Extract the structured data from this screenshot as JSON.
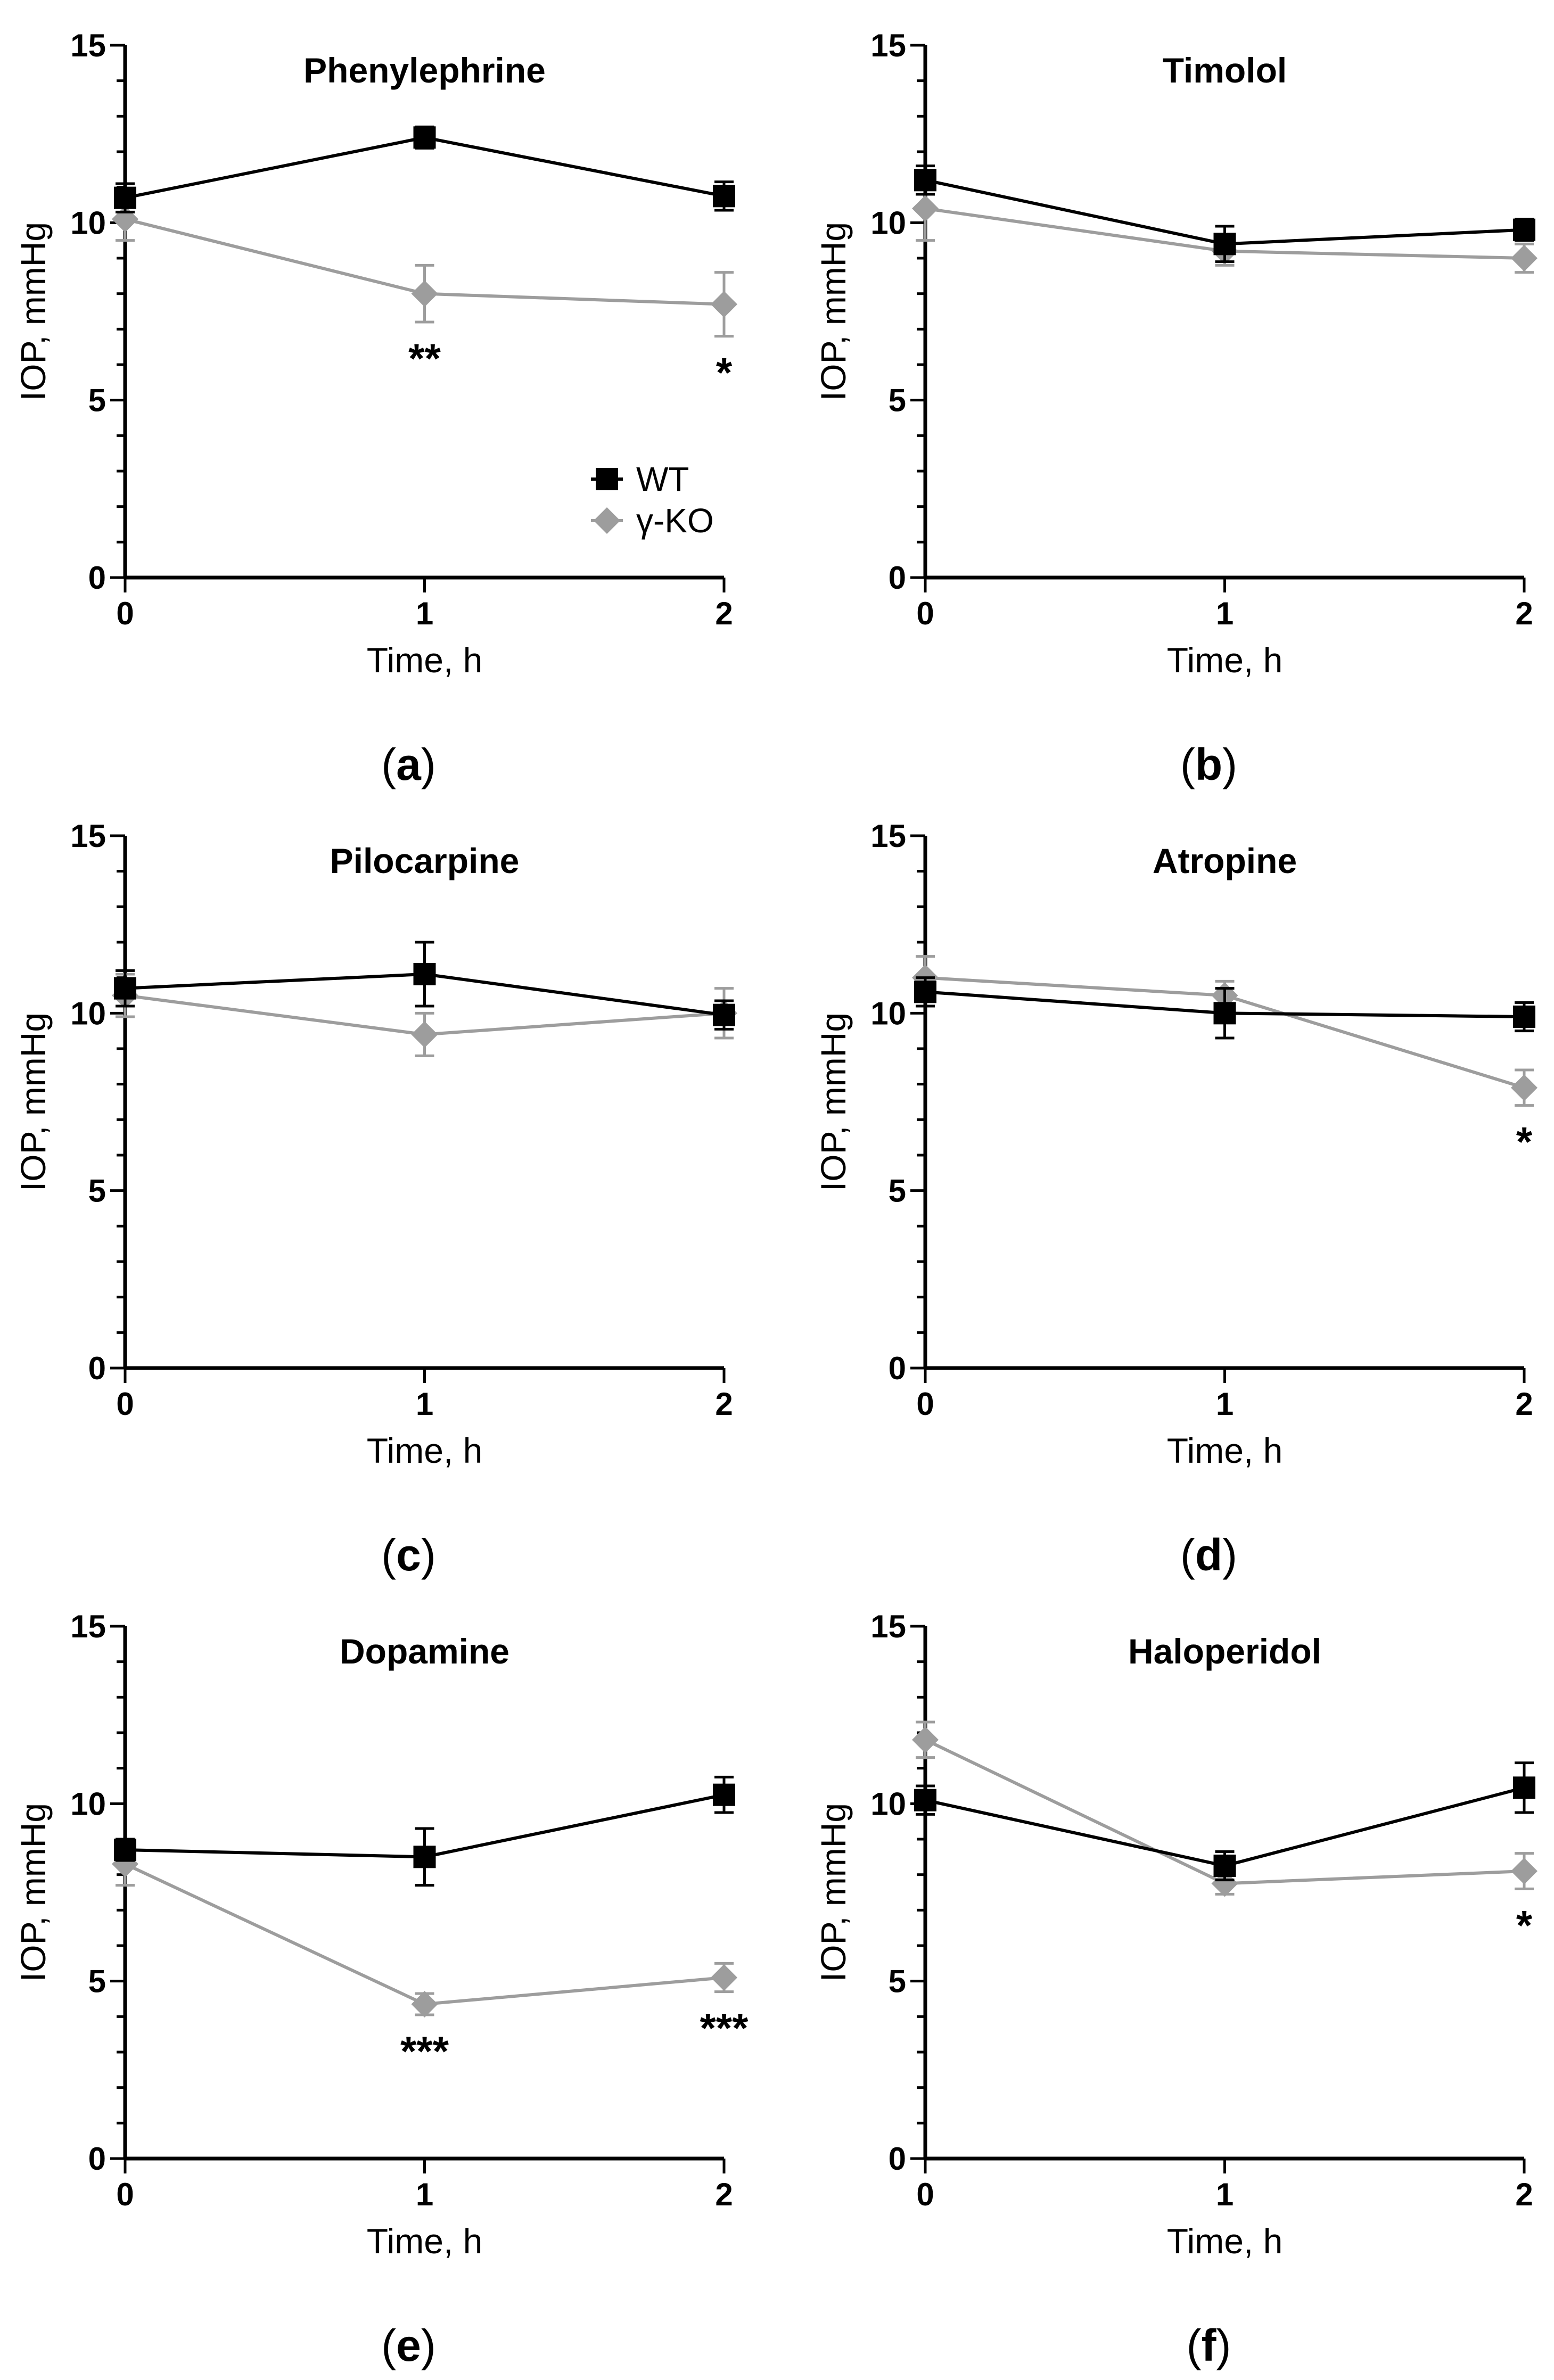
{
  "colors": {
    "WT": "#000000",
    "gamma_KO": "#9d9d9d",
    "axis": "#000000",
    "background": "#ffffff"
  },
  "legend": {
    "panel": "a",
    "placement": "lower-right",
    "entries": [
      {
        "series": "WT",
        "label": "WT",
        "marker": "square"
      },
      {
        "series": "gamma_KO",
        "label": "γ-KO",
        "marker": "diamond"
      }
    ]
  },
  "chart_data": [
    {
      "id": "a",
      "letter": "a",
      "type": "line",
      "title": "Phenylephrine",
      "xlabel": "Time, h",
      "ylabel": "IOP, mmHg",
      "x": [
        0,
        1,
        2
      ],
      "xlim": [
        0,
        2
      ],
      "ylim": [
        0,
        15
      ],
      "xticks": [
        "0",
        "1",
        "2"
      ],
      "yticks": [
        "0",
        "5",
        "10",
        "15"
      ],
      "series": [
        {
          "key": "WT",
          "values": [
            10.7,
            12.4,
            10.75
          ],
          "errors": [
            0.4,
            0.3,
            0.4
          ]
        },
        {
          "key": "gamma_KO",
          "values": [
            10.1,
            8.0,
            7.7
          ],
          "errors": [
            0.6,
            0.8,
            0.9
          ]
        }
      ],
      "annotations": [
        {
          "x": 1,
          "text": "**"
        },
        {
          "x": 2,
          "text": "*"
        }
      ]
    },
    {
      "id": "b",
      "letter": "b",
      "type": "line",
      "title": "Timolol",
      "xlabel": "Time, h",
      "ylabel": "IOP, mmHg",
      "x": [
        0,
        1,
        2
      ],
      "xlim": [
        0,
        2
      ],
      "ylim": [
        0,
        15
      ],
      "xticks": [
        "0",
        "1",
        "2"
      ],
      "yticks": [
        "0",
        "5",
        "10",
        "15"
      ],
      "series": [
        {
          "key": "WT",
          "values": [
            11.2,
            9.4,
            9.8
          ],
          "errors": [
            0.4,
            0.5,
            0.3
          ]
        },
        {
          "key": "gamma_KO",
          "values": [
            10.4,
            9.2,
            9.0
          ],
          "errors": [
            0.9,
            0.4,
            0.4
          ]
        }
      ],
      "annotations": []
    },
    {
      "id": "c",
      "letter": "c",
      "type": "line",
      "title": "Pilocarpine",
      "xlabel": "Time, h",
      "ylabel": "IOP, mmHg",
      "x": [
        0,
        1,
        2
      ],
      "xlim": [
        0,
        2
      ],
      "ylim": [
        0,
        15
      ],
      "xticks": [
        "0",
        "1",
        "2"
      ],
      "yticks": [
        "0",
        "5",
        "10",
        "15"
      ],
      "series": [
        {
          "key": "WT",
          "values": [
            10.7,
            11.1,
            9.95
          ],
          "errors": [
            0.5,
            0.9,
            0.4
          ]
        },
        {
          "key": "gamma_KO",
          "values": [
            10.5,
            9.4,
            10.0
          ],
          "errors": [
            0.6,
            0.6,
            0.7
          ]
        }
      ],
      "annotations": []
    },
    {
      "id": "d",
      "letter": "d",
      "type": "line",
      "title": "Atropine",
      "xlabel": "Time, h",
      "ylabel": "IOP, mmHg",
      "x": [
        0,
        1,
        2
      ],
      "xlim": [
        0,
        2
      ],
      "ylim": [
        0,
        15
      ],
      "xticks": [
        "0",
        "1",
        "2"
      ],
      "yticks": [
        "0",
        "5",
        "10",
        "15"
      ],
      "series": [
        {
          "key": "WT",
          "values": [
            10.6,
            10.0,
            9.9
          ],
          "errors": [
            0.4,
            0.7,
            0.4
          ]
        },
        {
          "key": "gamma_KO",
          "values": [
            11.0,
            10.5,
            7.9
          ],
          "errors": [
            0.6,
            0.4,
            0.5
          ]
        }
      ],
      "annotations": [
        {
          "x": 2,
          "text": "*"
        }
      ]
    },
    {
      "id": "e",
      "letter": "e",
      "type": "line",
      "title": "Dopamine",
      "xlabel": "Time, h",
      "ylabel": "IOP, mmHg",
      "x": [
        0,
        1,
        2
      ],
      "xlim": [
        0,
        2
      ],
      "ylim": [
        0,
        15
      ],
      "xticks": [
        "0",
        "1",
        "2"
      ],
      "yticks": [
        "0",
        "5",
        "10",
        "15"
      ],
      "series": [
        {
          "key": "WT",
          "values": [
            8.7,
            8.5,
            10.25
          ],
          "errors": [
            0.3,
            0.8,
            0.5
          ]
        },
        {
          "key": "gamma_KO",
          "values": [
            8.3,
            4.35,
            5.1
          ],
          "errors": [
            0.6,
            0.3,
            0.4
          ]
        }
      ],
      "annotations": [
        {
          "x": 1,
          "text": "***"
        },
        {
          "x": 2,
          "text": "***"
        }
      ]
    },
    {
      "id": "f",
      "letter": "f",
      "type": "line",
      "title": "Haloperidol",
      "xlabel": "Time, h",
      "ylabel": "IOP, mmHg",
      "x": [
        0,
        1,
        2
      ],
      "xlim": [
        0,
        2
      ],
      "ylim": [
        0,
        15
      ],
      "xticks": [
        "0",
        "1",
        "2"
      ],
      "yticks": [
        "0",
        "5",
        "10",
        "15"
      ],
      "series": [
        {
          "key": "WT",
          "values": [
            10.1,
            8.25,
            10.45
          ],
          "errors": [
            0.4,
            0.4,
            0.7
          ]
        },
        {
          "key": "gamma_KO",
          "values": [
            11.8,
            7.75,
            8.1
          ],
          "errors": [
            0.5,
            0.3,
            0.5
          ]
        }
      ],
      "annotations": [
        {
          "x": 2,
          "text": "*"
        }
      ]
    }
  ]
}
